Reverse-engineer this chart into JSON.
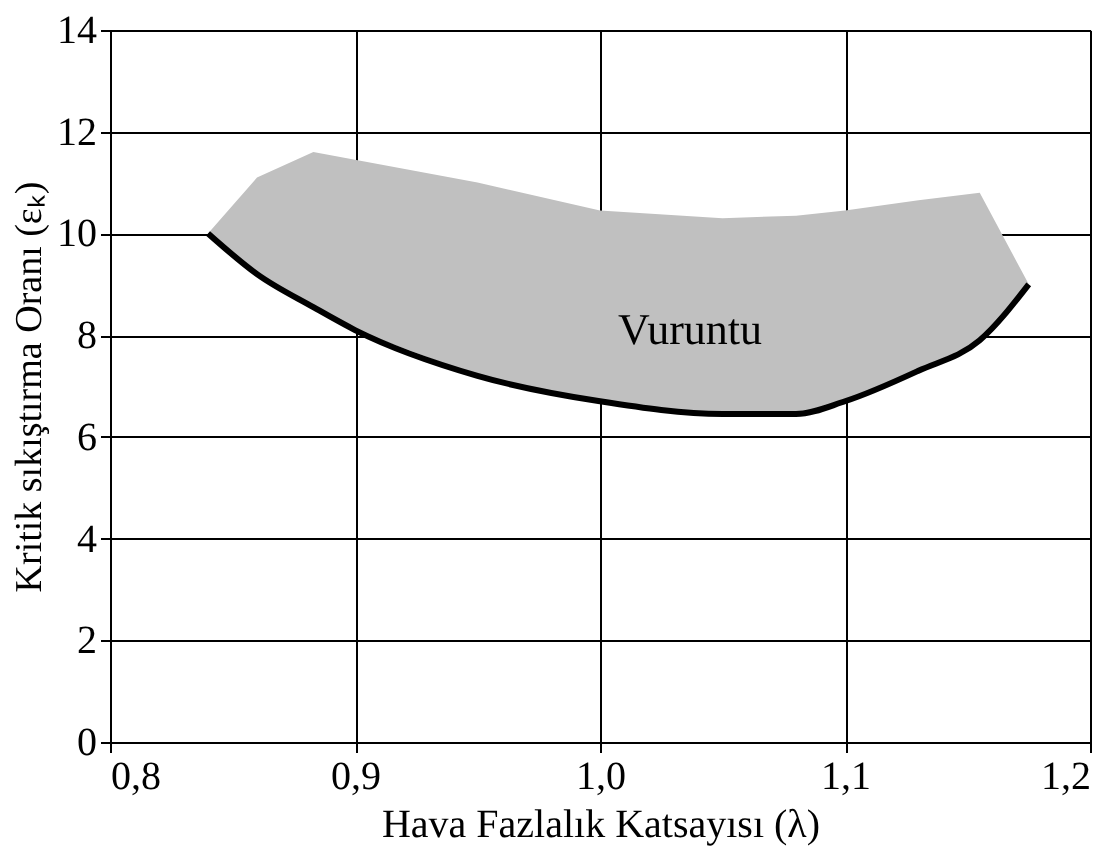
{
  "chart_data": {
    "type": "line",
    "xlabel": "Hava Fazlalık Katsayısı (λ)",
    "ylabel": "Kritik sıkıştırma Oranı (εₖ)",
    "x": [
      0.84,
      0.86,
      0.883,
      0.9,
      0.95,
      1.0,
      1.05,
      1.08,
      1.1,
      1.13,
      1.155,
      1.175
    ],
    "series": [
      {
        "color": "#000000",
        "values": [
          10,
          9.2,
          8.55,
          8.1,
          7.2,
          6.7,
          6.45,
          6.45,
          6.7,
          7.3,
          7.9,
          9.0
        ],
        "lower": [
          10,
          9.2,
          8.55,
          8.1,
          7.2,
          6.7,
          6.45,
          6.45,
          6.7,
          7.3,
          7.9,
          9.0
        ],
        "upper": [
          10,
          11.1,
          11.6,
          11.45,
          11.0,
          10.45,
          10.3,
          10.35,
          10.45,
          10.65,
          10.8,
          9.0
        ]
      }
    ],
    "annotations": [
      "Vuruntu"
    ],
    "xlim": [
      0.8,
      1.2
    ],
    "xticks": [
      {
        "value": 0.8,
        "label": "0,8"
      },
      {
        "value": 0.9,
        "label": "0,9"
      },
      {
        "value": 1.0,
        "label": "1,0"
      },
      {
        "value": 1.1,
        "label": "1,1"
      },
      {
        "value": 1.2,
        "label": "1,2"
      }
    ],
    "ylim": [
      0,
      14
    ],
    "yticks": [
      0,
      2,
      4,
      6,
      8,
      10,
      12,
      14
    ],
    "grid": true,
    "marker": "none",
    "line_style": "solid"
  }
}
